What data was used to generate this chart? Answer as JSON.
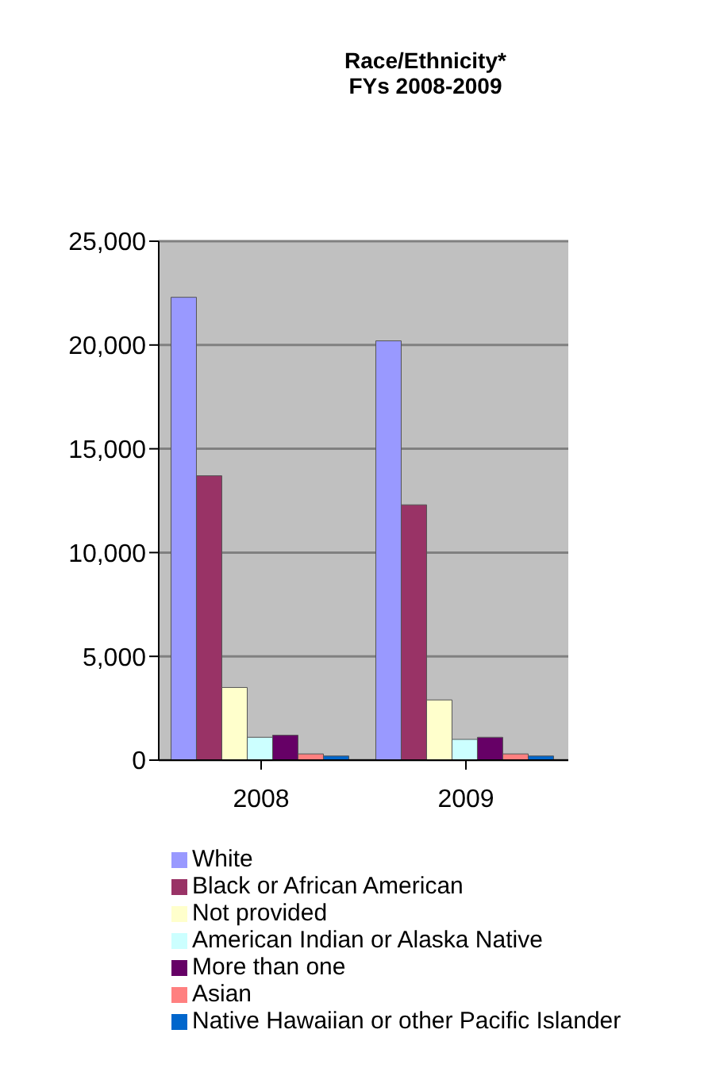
{
  "chart_data": {
    "type": "bar",
    "title": "Race/Ethnicity*",
    "subtitle": "FYs 2008-2009",
    "categories": [
      "2008",
      "2009"
    ],
    "series": [
      {
        "name": "White",
        "color": "#9999ff",
        "values": [
          22300,
          20200
        ]
      },
      {
        "name": "Black or African American",
        "color": "#993366",
        "values": [
          13700,
          12300
        ]
      },
      {
        "name": "Not provided",
        "color": "#ffffcc",
        "values": [
          3500,
          2900
        ]
      },
      {
        "name": "American Indian or Alaska Native",
        "color": "#ccffff",
        "values": [
          1100,
          1000
        ]
      },
      {
        "name": "More than one",
        "color": "#660066",
        "values": [
          1200,
          1100
        ]
      },
      {
        "name": "Asian",
        "color": "#ff8080",
        "values": [
          300,
          300
        ]
      },
      {
        "name": "Native Hawaiian or other Pacific Islander",
        "color": "#0066cc",
        "values": [
          200,
          200
        ]
      }
    ],
    "ylim": [
      0,
      25000
    ],
    "yticks": [
      0,
      {
        "value": 5000,
        "label": "5,000"
      },
      {
        "value": 10000,
        "label": "10,000"
      },
      {
        "value": 15000,
        "label": "15,000"
      },
      {
        "value": 20000,
        "label": "20,000"
      },
      {
        "value": 25000,
        "label": "25,000"
      }
    ],
    "grid": "y",
    "legend": "bottom"
  }
}
